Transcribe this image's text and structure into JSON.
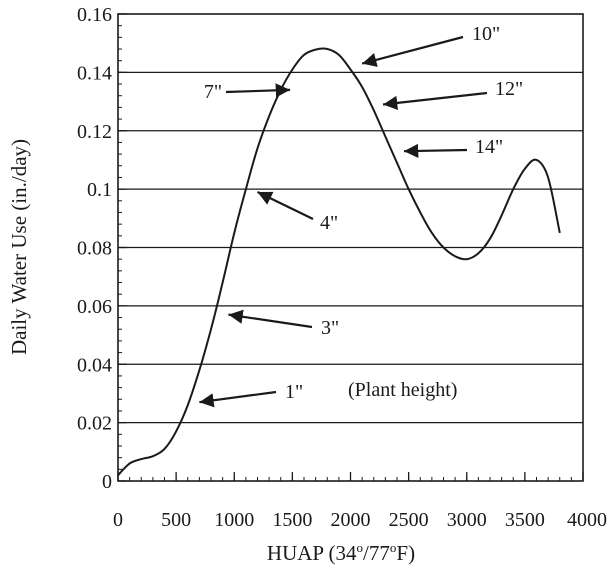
{
  "chart_data": {
    "type": "line",
    "xlabel": "HUAP (34°/77°F)",
    "xlabel_parts": {
      "pre": "HUAP (34",
      "sup1": "o",
      "mid": "/77",
      "sup2": "o",
      "post": "F)"
    },
    "ylabel": "Daily Water Use (in./day)",
    "xlim": [
      0,
      4000
    ],
    "ylim": [
      0,
      0.16
    ],
    "x_ticks": [
      0,
      500,
      1000,
      1500,
      2000,
      2500,
      3000,
      3500,
      4000
    ],
    "x_tick_labels": [
      "0",
      "500",
      "1000",
      "1500",
      "2000",
      "2500",
      "3000",
      "3500",
      "4000"
    ],
    "y_ticks": [
      0,
      0.02,
      0.04,
      0.06,
      0.08,
      0.1,
      0.12,
      0.14,
      0.16
    ],
    "y_tick_labels": [
      "0",
      "0.02",
      "0.04",
      "0.06",
      "0.08",
      "0.1",
      "0.12",
      "0.14",
      "0.16"
    ],
    "grid": "horizontal",
    "series": [
      {
        "x": [
          0,
          100,
          200,
          300,
          400,
          500,
          600,
          700,
          800,
          900,
          1000,
          1100,
          1200,
          1300,
          1400,
          1500,
          1600,
          1700,
          1800,
          1900,
          2000,
          2100,
          2200,
          2300,
          2400,
          2500,
          2600,
          2700,
          2800,
          2900,
          3000,
          3100,
          3200,
          3300,
          3400,
          3500,
          3600,
          3700,
          3800
        ],
        "y": [
          0.002,
          0.006,
          0.0075,
          0.0085,
          0.011,
          0.017,
          0.026,
          0.038,
          0.052,
          0.068,
          0.085,
          0.1,
          0.114,
          0.125,
          0.134,
          0.141,
          0.146,
          0.1478,
          0.148,
          0.146,
          0.141,
          0.135,
          0.127,
          0.118,
          0.109,
          0.1,
          0.092,
          0.085,
          0.08,
          0.077,
          0.076,
          0.078,
          0.083,
          0.091,
          0.1,
          0.107,
          0.11,
          0.104,
          0.085
        ]
      }
    ],
    "annotations": [
      {
        "text": "1\"",
        "point": [
          700,
          0.027
        ]
      },
      {
        "text": "3\"",
        "point": [
          950,
          0.057
        ]
      },
      {
        "text": "4\"",
        "point": [
          1200,
          0.099
        ]
      },
      {
        "text": "7\"",
        "point": [
          1480,
          0.134
        ]
      },
      {
        "text": "10\"",
        "point": [
          2100,
          0.143
        ]
      },
      {
        "text": "12\"",
        "point": [
          2280,
          0.129
        ]
      },
      {
        "text": "14\"",
        "point": [
          2460,
          0.113
        ]
      }
    ],
    "note": "(Plant height)"
  }
}
